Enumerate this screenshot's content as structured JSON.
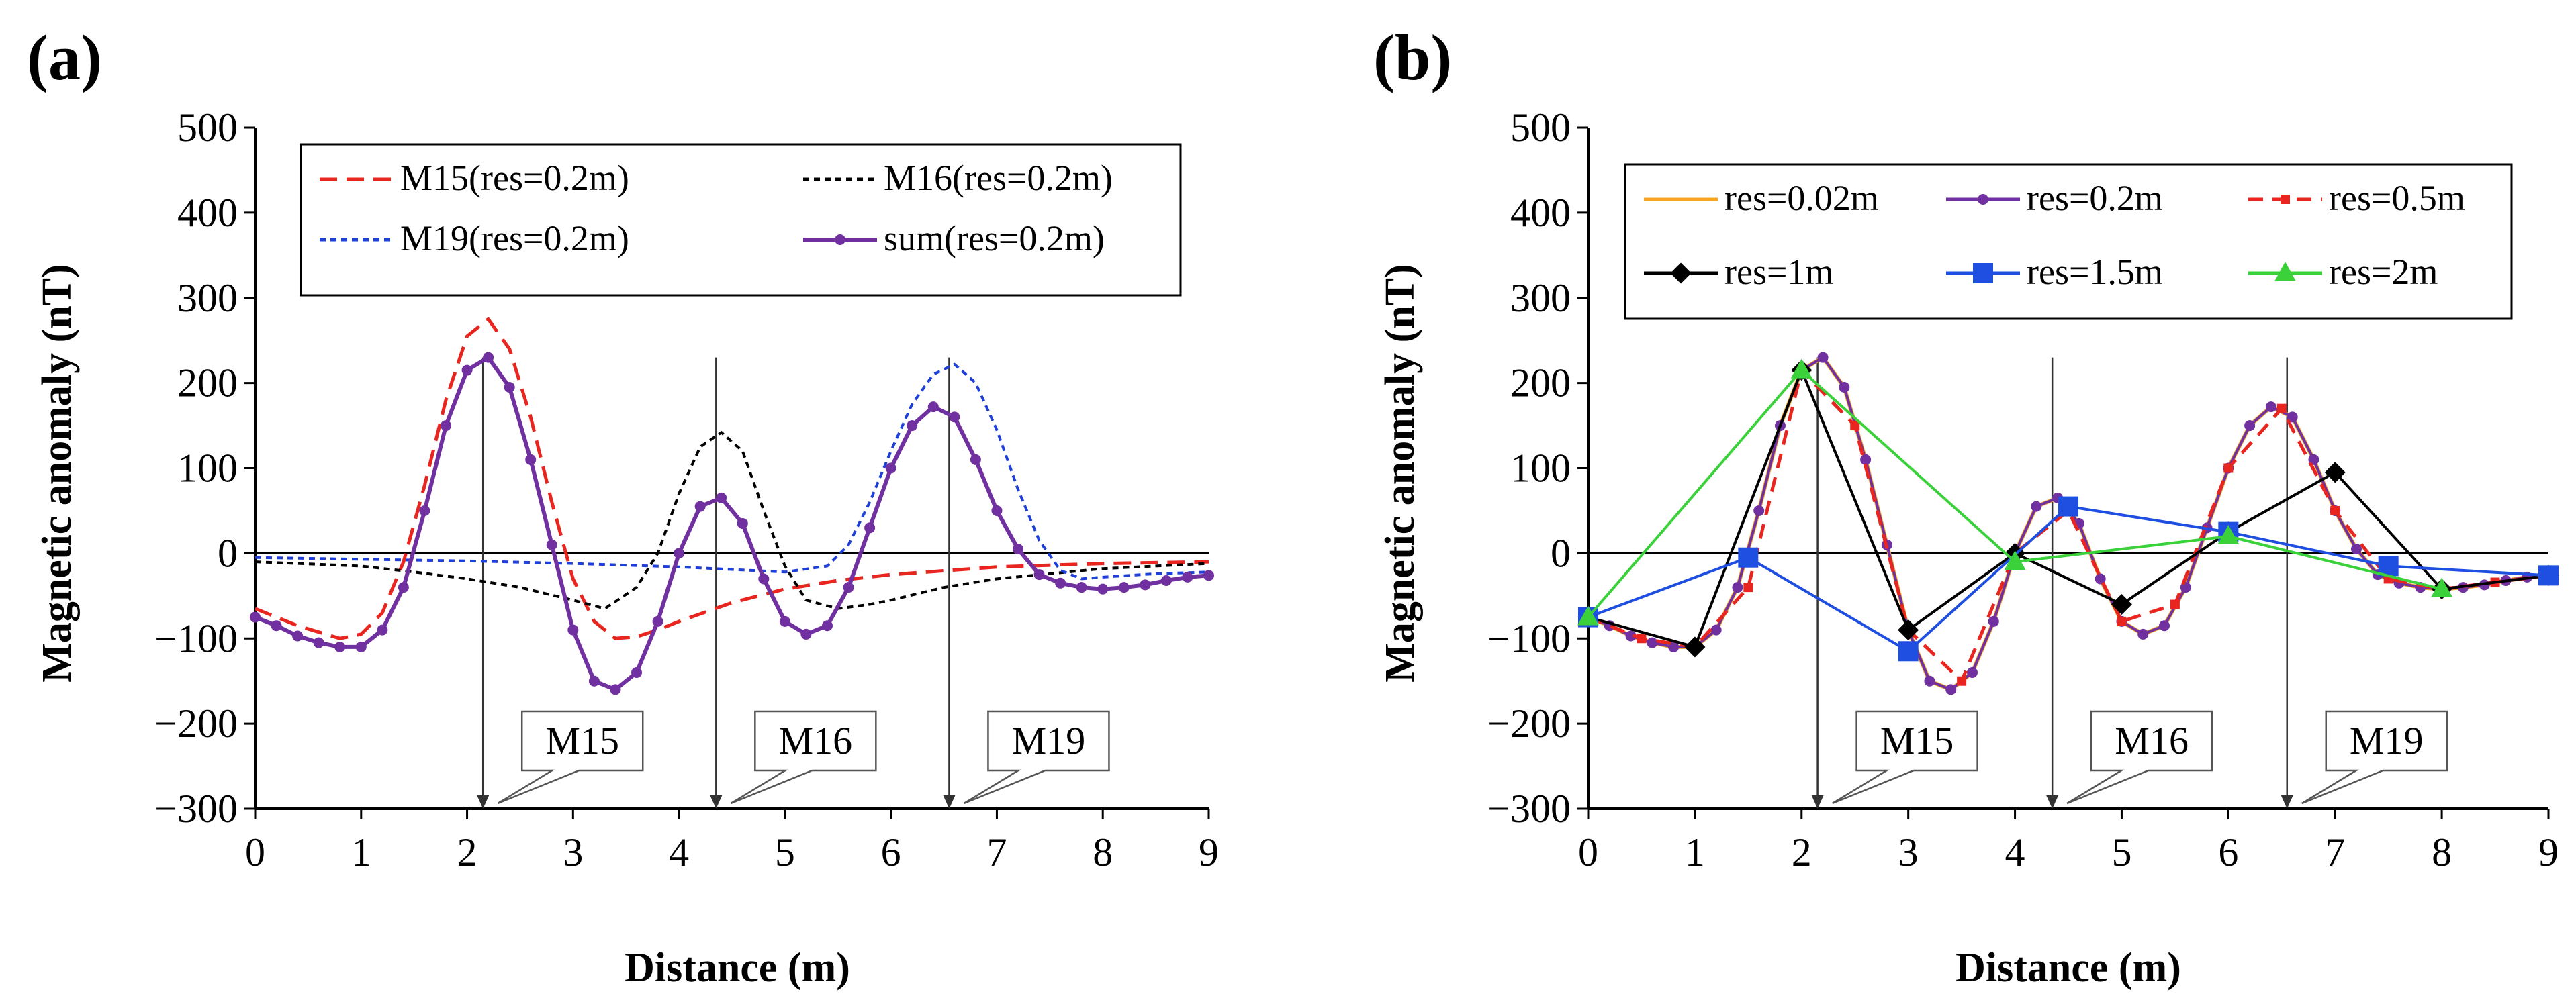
{
  "figure": {
    "panels": [
      "(a)",
      "(b)"
    ]
  },
  "chart_data": [
    {
      "type": "line",
      "panel_label": "(a)",
      "xlabel": "Distance (m)",
      "ylabel": "Magnetic anomaly (nT)",
      "xlim": [
        0,
        9
      ],
      "ylim": [
        -300,
        500
      ],
      "xticks": [
        0,
        1,
        2,
        3,
        4,
        5,
        6,
        7,
        8,
        9
      ],
      "yticks": [
        -300,
        -200,
        -100,
        0,
        100,
        200,
        300,
        400,
        500
      ],
      "grid": false,
      "legend_position": "top",
      "series": [
        {
          "name": "M15(res=0.2m)",
          "color": "#e8251e",
          "style": "dashed",
          "markers": false,
          "x": [
            0,
            0.4,
            0.8,
            1.0,
            1.2,
            1.4,
            1.6,
            1.8,
            2.0,
            2.2,
            2.4,
            2.6,
            2.8,
            3.0,
            3.2,
            3.4,
            3.6,
            3.8,
            4.0,
            4.5,
            5.0,
            5.5,
            6.0,
            7.0,
            8.0,
            9.0
          ],
          "y": [
            -65,
            -85,
            -100,
            -95,
            -70,
            -10,
            80,
            180,
            255,
            275,
            240,
            160,
            60,
            -30,
            -80,
            -100,
            -98,
            -90,
            -80,
            -58,
            -42,
            -32,
            -25,
            -16,
            -12,
            -10
          ]
        },
        {
          "name": "M16(res=0.2m)",
          "color": "#000000",
          "style": "dotted",
          "markers": false,
          "x": [
            0,
            1,
            1.5,
            2,
            2.5,
            3.0,
            3.3,
            3.6,
            3.8,
            4.0,
            4.2,
            4.4,
            4.6,
            4.8,
            5.0,
            5.2,
            5.5,
            5.8,
            6.0,
            6.5,
            7.0,
            8.0,
            9.0
          ],
          "y": [
            -10,
            -15,
            -22,
            -30,
            -40,
            -55,
            -65,
            -40,
            0,
            70,
            125,
            142,
            120,
            50,
            -15,
            -55,
            -65,
            -60,
            -55,
            -40,
            -30,
            -18,
            -12
          ]
        },
        {
          "name": "M19(res=0.2m)",
          "color": "#1e3fd8",
          "style": "dotted",
          "markers": false,
          "x": [
            0,
            1,
            2,
            3,
            4,
            5.0,
            5.4,
            5.6,
            5.8,
            6.0,
            6.2,
            6.4,
            6.6,
            6.8,
            7.0,
            7.2,
            7.4,
            7.6,
            7.8,
            8.0,
            8.5,
            9.0
          ],
          "y": [
            -5,
            -7,
            -9,
            -12,
            -16,
            -22,
            -15,
            10,
            60,
            120,
            175,
            210,
            222,
            200,
            145,
            75,
            15,
            -20,
            -30,
            -28,
            -24,
            -22
          ]
        },
        {
          "name": "sum(res=0.2m)",
          "color": "#7030a0",
          "style": "solid",
          "markers": true,
          "x": [
            0,
            0.2,
            0.4,
            0.6,
            0.8,
            1.0,
            1.2,
            1.4,
            1.6,
            1.8,
            2.0,
            2.2,
            2.4,
            2.6,
            2.8,
            3.0,
            3.2,
            3.4,
            3.6,
            3.8,
            4.0,
            4.2,
            4.4,
            4.6,
            4.8,
            5.0,
            5.2,
            5.4,
            5.6,
            5.8,
            6.0,
            6.2,
            6.4,
            6.6,
            6.8,
            7.0,
            7.2,
            7.4,
            7.6,
            7.8,
            8.0,
            8.2,
            8.4,
            8.6,
            8.8,
            9.0
          ],
          "y": [
            -75,
            -85,
            -97,
            -105,
            -110,
            -110,
            -90,
            -40,
            50,
            150,
            215,
            230,
            195,
            110,
            10,
            -90,
            -150,
            -160,
            -140,
            -80,
            0,
            55,
            65,
            35,
            -30,
            -80,
            -95,
            -85,
            -40,
            30,
            100,
            150,
            172,
            160,
            110,
            50,
            5,
            -25,
            -35,
            -40,
            -42,
            -40,
            -37,
            -32,
            -28,
            -26
          ]
        }
      ],
      "annotations": [
        {
          "text": "M15",
          "x": 2.15
        },
        {
          "text": "M16",
          "x": 4.35
        },
        {
          "text": "M19",
          "x": 6.55
        }
      ]
    },
    {
      "type": "line",
      "panel_label": "(b)",
      "xlabel": "Distance (m)",
      "ylabel": "Magnetic anomaly (nT)",
      "xlim": [
        0,
        9
      ],
      "ylim": [
        -300,
        500
      ],
      "xticks": [
        0,
        1,
        2,
        3,
        4,
        5,
        6,
        7,
        8,
        9
      ],
      "yticks": [
        -300,
        -200,
        -100,
        0,
        100,
        200,
        300,
        400,
        500
      ],
      "grid": false,
      "legend_position": "top",
      "series": [
        {
          "name": "res=0.02m",
          "color": "#f5a623",
          "style": "solid",
          "markers": false,
          "x": [
            0,
            0.2,
            0.4,
            0.6,
            0.8,
            1.0,
            1.2,
            1.4,
            1.6,
            1.8,
            2.0,
            2.2,
            2.4,
            2.6,
            2.8,
            3.0,
            3.2,
            3.4,
            3.6,
            3.8,
            4.0,
            4.2,
            4.4,
            4.6,
            4.8,
            5.0,
            5.2,
            5.4,
            5.6,
            5.8,
            6.0,
            6.2,
            6.4,
            6.6,
            6.8,
            7.0,
            7.2,
            7.4,
            7.6,
            7.8,
            8.0,
            8.2,
            8.4,
            8.6,
            8.8,
            9.0
          ],
          "y": [
            -75,
            -85,
            -97,
            -105,
            -110,
            -110,
            -90,
            -40,
            50,
            150,
            215,
            230,
            195,
            110,
            10,
            -90,
            -150,
            -160,
            -140,
            -80,
            0,
            55,
            65,
            35,
            -30,
            -80,
            -95,
            -85,
            -40,
            30,
            100,
            150,
            172,
            160,
            110,
            50,
            5,
            -25,
            -35,
            -40,
            -42,
            -40,
            -37,
            -32,
            -28,
            -26
          ]
        },
        {
          "name": "res=0.2m",
          "color": "#7030a0",
          "style": "solid",
          "markers": true,
          "x": [
            0,
            0.2,
            0.4,
            0.6,
            0.8,
            1.0,
            1.2,
            1.4,
            1.6,
            1.8,
            2.0,
            2.2,
            2.4,
            2.6,
            2.8,
            3.0,
            3.2,
            3.4,
            3.6,
            3.8,
            4.0,
            4.2,
            4.4,
            4.6,
            4.8,
            5.0,
            5.2,
            5.4,
            5.6,
            5.8,
            6.0,
            6.2,
            6.4,
            6.6,
            6.8,
            7.0,
            7.2,
            7.4,
            7.6,
            7.8,
            8.0,
            8.2,
            8.4,
            8.6,
            8.8,
            9.0
          ],
          "y": [
            -75,
            -85,
            -97,
            -105,
            -110,
            -110,
            -90,
            -40,
            50,
            150,
            215,
            230,
            195,
            110,
            10,
            -90,
            -150,
            -160,
            -140,
            -80,
            0,
            55,
            65,
            35,
            -30,
            -80,
            -95,
            -85,
            -40,
            30,
            100,
            150,
            172,
            160,
            110,
            50,
            5,
            -25,
            -35,
            -40,
            -42,
            -40,
            -37,
            -32,
            -28,
            -26
          ]
        },
        {
          "name": "res=0.5m",
          "color": "#e8251e",
          "style": "dashed",
          "markers": true,
          "x": [
            0,
            0.5,
            1.0,
            1.5,
            2.0,
            2.5,
            3.0,
            3.5,
            4.0,
            4.5,
            5.0,
            5.5,
            6.0,
            6.5,
            7.0,
            7.5,
            8.0,
            8.5,
            9.0
          ],
          "y": [
            -75,
            -100,
            -110,
            -40,
            215,
            150,
            -90,
            -150,
            0,
            50,
            -80,
            -60,
            100,
            170,
            50,
            -30,
            -42,
            -34,
            -26
          ]
        },
        {
          "name": "res=1m",
          "color": "#000000",
          "style": "solid",
          "markers": true,
          "x": [
            0,
            1,
            2,
            3,
            4,
            5,
            6,
            7,
            8,
            9
          ],
          "y": [
            -75,
            -110,
            215,
            -90,
            0,
            -60,
            25,
            95,
            -42,
            -26
          ]
        },
        {
          "name": "res=1.5m",
          "color": "#1f4fe0",
          "style": "solid",
          "markers": true,
          "x": [
            0,
            1.5,
            3.0,
            4.5,
            6.0,
            7.5,
            9.0
          ],
          "y": [
            -75,
            -5,
            -115,
            55,
            25,
            -15,
            -26
          ]
        },
        {
          "name": "res=2m",
          "color": "#3ad13a",
          "style": "solid",
          "markers": true,
          "x": [
            0,
            2,
            4,
            6,
            8
          ],
          "y": [
            -75,
            215,
            -10,
            20,
            -42
          ]
        }
      ],
      "annotations": [
        {
          "text": "M15",
          "x": 2.15
        },
        {
          "text": "M16",
          "x": 4.35
        },
        {
          "text": "M19",
          "x": 6.55
        }
      ]
    }
  ]
}
